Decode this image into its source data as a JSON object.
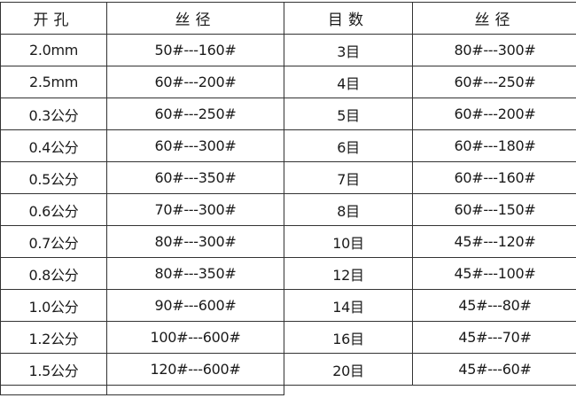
{
  "table": {
    "headers": [
      "开孔",
      "丝径",
      "目数",
      "丝径"
    ],
    "rows": [
      [
        "2.0mm",
        "50#---160#",
        "3目",
        "80#---300#"
      ],
      [
        "2.5mm",
        "60#---200#",
        "4目",
        "60#---250#"
      ],
      [
        "0.3公分",
        "60#---250#",
        "5目",
        "60#---200#"
      ],
      [
        "0.4公分",
        "60#---300#",
        "6目",
        "60#---180#"
      ],
      [
        "0.5公分",
        "60#---350#",
        "7目",
        "60#---160#"
      ],
      [
        "0.6公分",
        "70#---300#",
        "8目",
        "60#---150#"
      ],
      [
        "0.7公分",
        "80#---300#",
        "10目",
        "45#---120#"
      ],
      [
        "0.8公分",
        "80#---350#",
        "12目",
        "45#---100#"
      ],
      [
        "1.0公分",
        "90#---600#",
        "14目",
        "45#---80#"
      ],
      [
        "1.2公分",
        "100#---600#",
        "16目",
        "45#---70#"
      ],
      [
        "1.5公分",
        "120#---600#",
        "20目",
        "45#---60#"
      ]
    ]
  }
}
